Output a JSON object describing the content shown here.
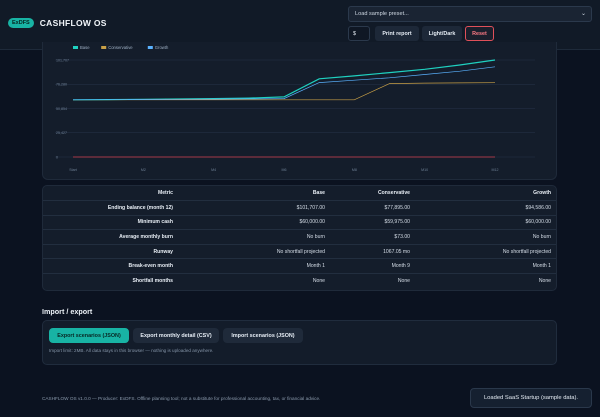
{
  "header": {
    "badge": "ExDFS",
    "app_title": "CASHFLOW OS",
    "preset_select": {
      "selected": "Load sample preset..."
    },
    "currency_value": "$",
    "print_label": "Print report",
    "theme_label": "Light/Dark",
    "reset_label": "Reset"
  },
  "colors": {
    "accent": "#18b3a4",
    "base": "#1fd1c0",
    "conservative": "#c9a047",
    "growth": "#5ab2ff",
    "reset": "#e0505a"
  },
  "chart_data": {
    "type": "line",
    "x": [
      "Start",
      "M1",
      "M2",
      "M3",
      "M4",
      "M5",
      "M6",
      "M7",
      "M8",
      "M9",
      "M10",
      "M11",
      "M12"
    ],
    "x_tick_labels": [
      "Start",
      "M2",
      "M4",
      "M6",
      "M8",
      "M10",
      "M12"
    ],
    "y_tick_labels": [
      "0",
      "25,427",
      "50,854",
      "76,280",
      "101,707"
    ],
    "ylim": [
      0,
      101707
    ],
    "grid": true,
    "legend": "top-left",
    "series": [
      {
        "name": "Base",
        "values": [
          60000,
          60200,
          60500,
          60800,
          61200,
          61800,
          63000,
          82000,
          85000,
          88500,
          92000,
          96500,
          101707
        ],
        "color": "#1fd1c0"
      },
      {
        "name": "Conservative",
        "values": [
          60000,
          60000,
          60000,
          59990,
          59985,
          59980,
          59978,
          59976,
          59975,
          77000,
          77500,
          77700,
          77895
        ],
        "color": "#c9a047"
      },
      {
        "name": "Growth",
        "values": [
          60000,
          60100,
          60300,
          60500,
          60700,
          60900,
          61200,
          78000,
          80500,
          83000,
          86500,
          90000,
          94586
        ],
        "color": "#5ab2ff"
      },
      {
        "name": "",
        "values": [
          0,
          0,
          0,
          0,
          0,
          0,
          0,
          0,
          0,
          0,
          0,
          0,
          0
        ],
        "color": "#d04050"
      }
    ]
  },
  "metrics_table": {
    "headers": [
      "Metric",
      "Base",
      "Conservative",
      "Growth"
    ],
    "rows": [
      [
        "Ending balance (month 12)",
        "$101,707.00",
        "$77,895.00",
        "$94,586.00"
      ],
      [
        "Minimum cash",
        "$60,000.00",
        "$59,975.00",
        "$60,000.00"
      ],
      [
        "Average monthly burn",
        "No burn",
        "$73.00",
        "No burn"
      ],
      [
        "Runway",
        "No shortfall projected",
        "1067.05 mo",
        "No shortfall projected"
      ],
      [
        "Break-even month",
        "Month 1",
        "Month 9",
        "Month 1"
      ],
      [
        "Shortfall months",
        "None",
        "None",
        "None"
      ]
    ]
  },
  "import_export": {
    "title": "Import / export",
    "export_json_label": "Export scenarios (JSON)",
    "export_csv_label": "Export monthly detail (CSV)",
    "import_json_label": "Import scenarios (JSON)",
    "note": "Import limit: 2MB. All data stays in this browser — nothing is uploaded anywhere."
  },
  "footer": {
    "text": "CASHFLOW OS v1.0.0 — Producer: ExDFS. Offline planning tool; not a substitute for professional accounting, tax, or financial advice."
  },
  "toast": {
    "message": "Loaded SaaS Startup (sample data)."
  }
}
